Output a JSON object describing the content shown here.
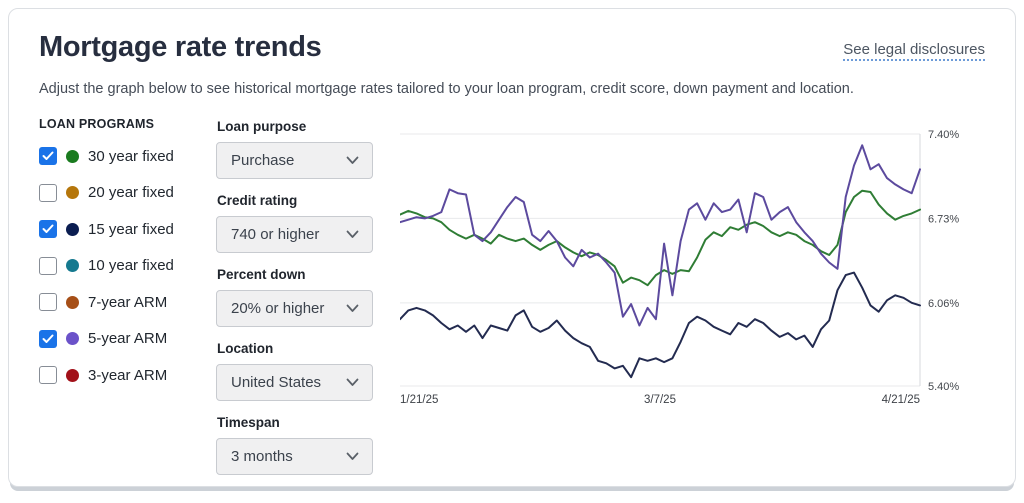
{
  "header": {
    "title": "Mortgage rate trends",
    "disclosures_link": "See legal disclosures",
    "subtitle": "Adjust the graph below to see historical mortgage rates tailored to your loan program, credit score, down payment and location."
  },
  "loan_programs": {
    "heading": "LOAN PROGRAMS",
    "items": [
      {
        "label": "30 year fixed",
        "checked": true,
        "color": "#1a7b1f"
      },
      {
        "label": "20 year fixed",
        "checked": false,
        "color": "#b5760b"
      },
      {
        "label": "15 year fixed",
        "checked": true,
        "color": "#0b1d51"
      },
      {
        "label": "10 year fixed",
        "checked": false,
        "color": "#15798f"
      },
      {
        "label": "7-year ARM",
        "checked": false,
        "color": "#a64f17"
      },
      {
        "label": "5-year ARM",
        "checked": true,
        "color": "#6b52c9"
      },
      {
        "label": "3-year ARM",
        "checked": false,
        "color": "#a21019"
      }
    ],
    "checkbox_color": "#1a73e8"
  },
  "filters": [
    {
      "label": "Loan purpose",
      "value": "Purchase"
    },
    {
      "label": "Credit rating",
      "value": "740 or higher"
    },
    {
      "label": "Percent down",
      "value": "20% or higher"
    },
    {
      "label": "Location",
      "value": "United States"
    },
    {
      "label": "Timespan",
      "value": "3 months"
    }
  ],
  "chart_data": {
    "type": "line",
    "x_axis": {
      "labels": [
        "1/21/25",
        "3/7/25",
        "4/21/25"
      ]
    },
    "y_axis": {
      "ticks": [
        "7.40%",
        "6.73%",
        "6.06%",
        "5.40%"
      ],
      "tick_values": [
        7.4,
        6.73,
        6.06,
        5.4
      ],
      "min": 5.4,
      "max": 7.4
    },
    "grid": true,
    "legend_position": "none",
    "series": [
      {
        "name": "30 year fixed",
        "color": "#2f7d35",
        "values": [
          6.76,
          6.79,
          6.77,
          6.74,
          6.73,
          6.7,
          6.64,
          6.6,
          6.57,
          6.6,
          6.57,
          6.53,
          6.6,
          6.57,
          6.55,
          6.57,
          6.52,
          6.48,
          6.52,
          6.55,
          6.5,
          6.46,
          6.43,
          6.46,
          6.44,
          6.4,
          6.35,
          6.22,
          6.26,
          6.24,
          6.2,
          6.28,
          6.32,
          6.29,
          6.32,
          6.31,
          6.42,
          6.56,
          6.62,
          6.59,
          6.66,
          6.64,
          6.68,
          6.7,
          6.67,
          6.62,
          6.59,
          6.62,
          6.6,
          6.55,
          6.52,
          6.47,
          6.44,
          6.52,
          6.78,
          6.9,
          6.95,
          6.94,
          6.84,
          6.77,
          6.72,
          6.75,
          6.77,
          6.8
        ]
      },
      {
        "name": "15 year fixed",
        "color": "#232b50",
        "values": [
          5.93,
          6.0,
          6.02,
          6.0,
          5.96,
          5.9,
          5.85,
          5.88,
          5.83,
          5.88,
          5.78,
          5.88,
          5.86,
          5.84,
          5.96,
          6.0,
          5.87,
          5.83,
          5.86,
          5.92,
          5.84,
          5.78,
          5.74,
          5.71,
          5.6,
          5.58,
          5.54,
          5.56,
          5.47,
          5.62,
          5.6,
          5.62,
          5.59,
          5.62,
          5.75,
          5.9,
          5.95,
          5.92,
          5.87,
          5.84,
          5.81,
          5.9,
          5.87,
          5.93,
          5.9,
          5.84,
          5.79,
          5.82,
          5.77,
          5.8,
          5.71,
          5.85,
          5.92,
          6.16,
          6.28,
          6.3,
          6.18,
          6.04,
          5.99,
          6.08,
          6.12,
          6.1,
          6.06,
          6.04
        ]
      },
      {
        "name": "5-year ARM",
        "color": "#5c4a9e",
        "values": [
          6.7,
          6.72,
          6.74,
          6.73,
          6.75,
          6.78,
          6.96,
          6.93,
          6.92,
          6.6,
          6.55,
          6.62,
          6.72,
          6.82,
          6.9,
          6.86,
          6.6,
          6.55,
          6.63,
          6.55,
          6.42,
          6.35,
          6.48,
          6.42,
          6.45,
          6.38,
          6.3,
          5.95,
          6.05,
          5.88,
          6.02,
          5.93,
          6.53,
          6.12,
          6.55,
          6.8,
          6.85,
          6.72,
          6.85,
          6.78,
          6.8,
          6.88,
          6.62,
          6.93,
          6.9,
          6.72,
          6.78,
          6.82,
          6.7,
          6.62,
          6.55,
          6.45,
          6.38,
          6.33,
          6.9,
          7.15,
          7.31,
          7.12,
          7.16,
          7.05,
          7.0,
          6.96,
          6.93,
          7.12
        ]
      }
    ]
  }
}
